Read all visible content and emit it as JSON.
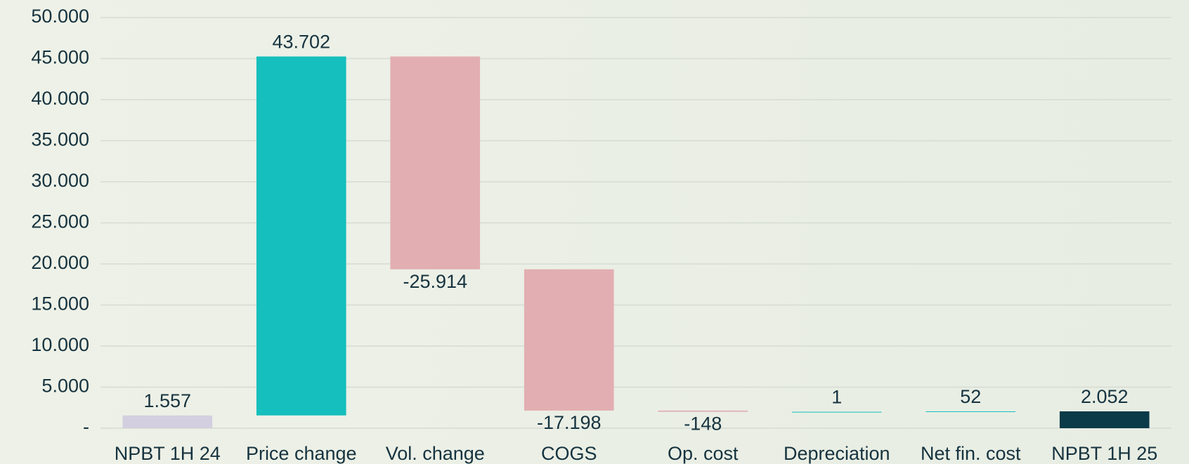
{
  "chart_data": {
    "type": "waterfall",
    "categories": [
      "NPBT 1H 24",
      "Price change",
      "Vol. change",
      "COGS",
      "Op. cost",
      "Depreciation",
      "Net fin. cost",
      "NPBT 1H 25"
    ],
    "values": [
      1557,
      43702,
      -25914,
      -17198,
      -148,
      1,
      52,
      2052
    ],
    "value_labels": [
      "1.557",
      "43.702",
      "-25.914",
      "-17.198",
      "-148",
      "1",
      "52",
      "2.052"
    ],
    "colors": [
      "#d3cfe0",
      "#14bfbd",
      "#e2aeb2",
      "#e2aeb2",
      "#e2aeb2",
      "#14bfbd",
      "#14bfbd",
      "#0b3a48"
    ],
    "ylim": [
      0,
      50000
    ],
    "yticks": [
      {
        "value": 0,
        "label": "-"
      },
      {
        "value": 5000,
        "label": "5.000"
      },
      {
        "value": 10000,
        "label": "10.000"
      },
      {
        "value": 15000,
        "label": "15.000"
      },
      {
        "value": 20000,
        "label": "20.000"
      },
      {
        "value": 25000,
        "label": "25.000"
      },
      {
        "value": 30000,
        "label": "30.000"
      },
      {
        "value": 35000,
        "label": "35.000"
      },
      {
        "value": 40000,
        "label": "40.000"
      },
      {
        "value": 45000,
        "label": "45.000"
      },
      {
        "value": 50000,
        "label": "50.000"
      }
    ],
    "grid": true
  }
}
